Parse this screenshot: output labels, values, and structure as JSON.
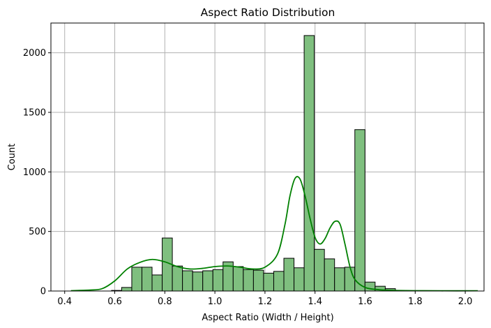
{
  "chart_data": {
    "type": "bar",
    "title": "Aspect Ratio Distribution",
    "xlabel": "Aspect Ratio (Width / Height)",
    "ylabel": "Count",
    "xlim": [
      0.345,
      2.075
    ],
    "ylim": [
      0,
      2250
    ],
    "grid": true,
    "x_ticks": [
      0.4,
      0.6,
      0.8,
      1.0,
      1.2,
      1.4,
      1.6,
      1.8,
      2.0
    ],
    "x_tick_labels": [
      "0.4",
      "0.6",
      "0.8",
      "1.0",
      "1.2",
      "1.4",
      "1.6",
      "1.8",
      "2.0"
    ],
    "y_ticks": [
      0,
      500,
      1000,
      1500,
      2000
    ],
    "y_tick_labels": [
      "0",
      "500",
      "1000",
      "1500",
      "2000"
    ],
    "bins": {
      "start": 0.425,
      "width": 0.0405,
      "counts": [
        0,
        0,
        0,
        0,
        5,
        30,
        200,
        200,
        135,
        445,
        210,
        170,
        160,
        170,
        180,
        245,
        205,
        180,
        175,
        150,
        165,
        275,
        195,
        2145,
        350,
        270,
        195,
        200,
        1355,
        75,
        40,
        20,
        5,
        0,
        0,
        0,
        0,
        0,
        0,
        0
      ]
    },
    "kde": {
      "x": [
        0.425,
        0.5,
        0.55,
        0.6,
        0.65,
        0.7,
        0.75,
        0.8,
        0.85,
        0.9,
        0.95,
        1.0,
        1.05,
        1.1,
        1.15,
        1.2,
        1.25,
        1.28,
        1.3,
        1.32,
        1.34,
        1.36,
        1.38,
        1.4,
        1.42,
        1.44,
        1.46,
        1.48,
        1.5,
        1.52,
        1.54,
        1.56,
        1.6,
        1.65,
        1.7,
        1.8,
        1.9,
        2.05
      ],
      "y": [
        3,
        8,
        20,
        85,
        185,
        240,
        265,
        245,
        205,
        185,
        190,
        205,
        210,
        200,
        185,
        200,
        310,
        560,
        800,
        945,
        940,
        800,
        610,
        450,
        395,
        440,
        530,
        585,
        560,
        390,
        200,
        95,
        30,
        12,
        6,
        3,
        2,
        2
      ]
    },
    "colors": {
      "bar_fill": "#7fbf7f",
      "bar_edge": "#000000",
      "kde_line": "#008000",
      "grid": "#b0b0b0"
    }
  }
}
